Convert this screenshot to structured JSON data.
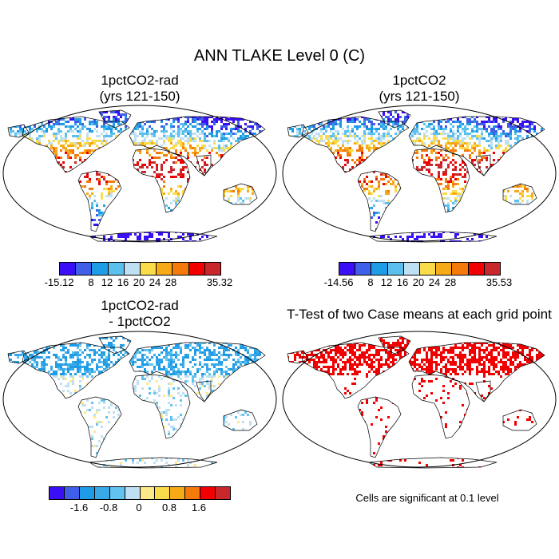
{
  "title": "ANN TLAKE Level 0 (C)",
  "panels": [
    {
      "title_line1": "1pctCO2-rad",
      "title_line2": "(yrs 121-150)",
      "colorbar": {
        "colors": [
          "#3a0ff5",
          "#3f5fe8",
          "#1f9ce6",
          "#5cc0ee",
          "#bfe0f2",
          "#fadc4a",
          "#f7aa18",
          "#f47a0c",
          "#f00000",
          "#c8282c"
        ],
        "tick_labels": [
          "-15.12",
          "8",
          "12",
          "16",
          "20",
          "24",
          "28",
          "35.32"
        ]
      }
    },
    {
      "title_line1": "1pctCO2",
      "title_line2": "(yrs 121-150)",
      "colorbar": {
        "colors": [
          "#3a0ff5",
          "#3f5fe8",
          "#1f9ce6",
          "#5cc0ee",
          "#bfe0f2",
          "#fadc4a",
          "#f7aa18",
          "#f47a0c",
          "#f00000",
          "#c8282c"
        ],
        "tick_labels": [
          "-14.56",
          "8",
          "12",
          "16",
          "20",
          "24",
          "28",
          "35.53"
        ]
      }
    },
    {
      "title_line1": "1pctCO2-rad",
      "title_line2": "- 1pctCO2",
      "colorbar": {
        "colors": [
          "#3a0ff5",
          "#3f5fe8",
          "#1f9ce6",
          "#3aa9e8",
          "#62c3f0",
          "#bfe0f2",
          "#fde88a",
          "#fadc4a",
          "#f7aa18",
          "#f47a0c",
          "#f00000",
          "#c8282c"
        ],
        "tick_labels": [
          "-1.6",
          "-0.8",
          "0",
          "0.8",
          "1.6"
        ]
      }
    },
    {
      "title_line1": "T-Test of two Case means at each grid point",
      "note": "Cells are significant at 0.1 level"
    }
  ]
}
